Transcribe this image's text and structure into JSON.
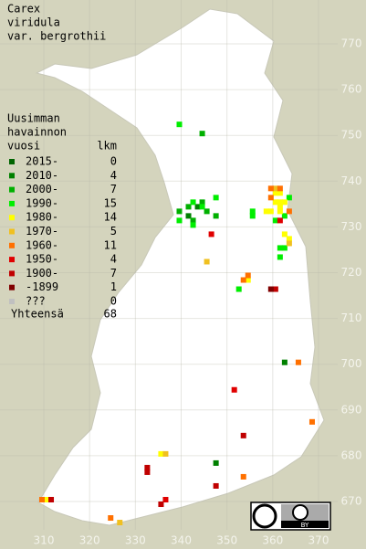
{
  "title": [
    "Carex",
    "viridula",
    "var. bergrothii"
  ],
  "legend": {
    "header": [
      "Uusimman",
      "havainnon",
      "vuosi"
    ],
    "count_header": "lkm",
    "rows": [
      {
        "label": "2015-",
        "count": 0,
        "color": "#006400",
        "points": []
      },
      {
        "label": "2010-",
        "count": 4,
        "color": "#008000",
        "points": [
          [
            362,
            700
          ],
          [
            347,
            678
          ],
          [
            341,
            732
          ],
          [
            343,
            734
          ]
        ]
      },
      {
        "label": "2000-",
        "count": 7,
        "color": "#00b000",
        "points": [
          [
            344,
            750
          ],
          [
            341,
            734
          ],
          [
            345,
            733
          ],
          [
            342,
            731
          ],
          [
            339,
            733
          ],
          [
            344,
            735
          ],
          [
            347,
            732
          ]
        ]
      },
      {
        "label": "1990-",
        "count": 15,
        "color": "#00ee00",
        "points": [
          [
            339,
            752
          ],
          [
            347,
            736
          ],
          [
            339,
            731
          ],
          [
            342,
            730
          ],
          [
            355,
            732
          ],
          [
            355,
            733
          ],
          [
            361,
            725
          ],
          [
            362,
            725
          ],
          [
            361,
            723
          ],
          [
            352,
            716
          ],
          [
            362,
            732
          ],
          [
            344,
            734
          ],
          [
            363,
            736
          ],
          [
            342,
            735
          ],
          [
            360,
            731
          ]
        ]
      },
      {
        "label": "1980-",
        "count": 14,
        "color": "#ffff00",
        "points": [
          [
            360,
            737
          ],
          [
            361,
            737
          ],
          [
            358,
            733
          ],
          [
            359,
            733
          ],
          [
            361,
            733
          ],
          [
            360,
            735
          ],
          [
            361,
            735
          ],
          [
            362,
            735
          ],
          [
            310,
            670
          ],
          [
            335,
            680
          ],
          [
            362,
            728
          ],
          [
            363,
            727
          ],
          [
            354,
            718
          ],
          [
            361,
            734
          ]
        ]
      },
      {
        "label": "1970-",
        "count": 5,
        "color": "#f0c020",
        "points": [
          [
            345,
            722
          ],
          [
            363,
            726
          ],
          [
            326,
            665
          ],
          [
            360,
            738
          ],
          [
            336,
            680
          ]
        ]
      },
      {
        "label": "1960-",
        "count": 11,
        "color": "#ff7000",
        "points": [
          [
            354,
            719
          ],
          [
            365,
            700
          ],
          [
            368,
            687
          ],
          [
            353,
            675
          ],
          [
            359,
            738
          ],
          [
            363,
            733
          ],
          [
            324,
            666
          ],
          [
            309,
            670
          ],
          [
            359,
            736
          ],
          [
            361,
            738
          ],
          [
            353,
            718
          ]
        ]
      },
      {
        "label": "1950-",
        "count": 4,
        "color": "#e00000",
        "points": [
          [
            351,
            694
          ],
          [
            361,
            731
          ],
          [
            346,
            728
          ],
          [
            336,
            670
          ]
        ]
      },
      {
        "label": "1900-",
        "count": 7,
        "color": "#c00000",
        "points": [
          [
            332,
            677
          ],
          [
            332,
            676
          ],
          [
            353,
            684
          ],
          [
            335,
            669
          ],
          [
            347,
            673
          ],
          [
            360,
            716
          ],
          [
            311,
            670
          ]
        ]
      },
      {
        "label": "-1899",
        "count": 1,
        "color": "#800000",
        "points": [
          [
            359,
            716
          ]
        ]
      },
      {
        "label": "???",
        "count": 0,
        "color": "#c0c0c0",
        "points": []
      }
    ],
    "total_label": "Yhteensä",
    "total": 68
  },
  "axes": {
    "xticks": [
      310,
      320,
      330,
      340,
      350,
      360,
      370
    ],
    "yticks": [
      670,
      680,
      690,
      700,
      710,
      720,
      730,
      740,
      750,
      760,
      770
    ]
  },
  "badge": {
    "text": "BY"
  }
}
